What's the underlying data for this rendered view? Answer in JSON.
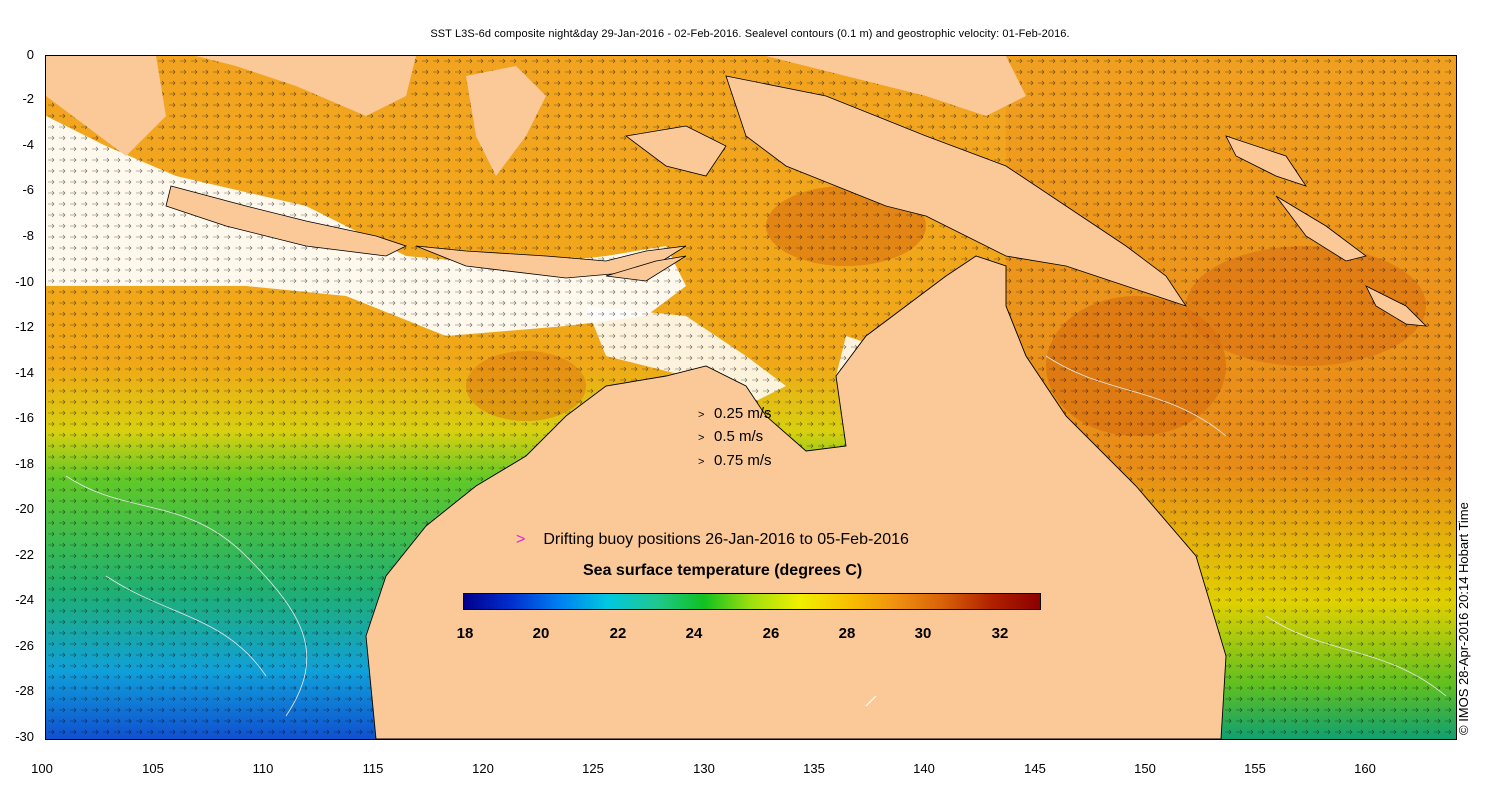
{
  "title": "SST L3S-6d composite night&day 29-Jan-2016 - 02-Feb-2016. Sealevel contours (0.1 m) and geostrophic velocity: 01-Feb-2016.",
  "axes": {
    "x_ticks": [
      "100",
      "105",
      "110",
      "115",
      "120",
      "125",
      "130",
      "135",
      "140",
      "145",
      "150",
      "155",
      "160"
    ],
    "y_ticks": [
      "0",
      "-2",
      "-4",
      "-6",
      "-8",
      "-10",
      "-12",
      "-14",
      "-16",
      "-18",
      "-20",
      "-22",
      "-24",
      "-26",
      "-28",
      "-30"
    ],
    "x_range": [
      100,
      164
    ],
    "y_range": [
      -30,
      0
    ]
  },
  "velocity_key": [
    {
      "symbol": ">",
      "label": "0.25 m/s"
    },
    {
      "symbol": ">",
      "label": "0.5 m/s"
    },
    {
      "symbol": ">",
      "label": "0.75 m/s"
    }
  ],
  "buoy_legend": {
    "symbol": ">",
    "label": "Drifting buoy positions 26-Jan-2016 to 05-Feb-2016",
    "color": "#e020e0"
  },
  "colorbar": {
    "title": "Sea surface temperature (degrees C)",
    "ticks": [
      "18",
      "20",
      "22",
      "24",
      "26",
      "28",
      "30",
      "32"
    ],
    "range": [
      18,
      33
    ],
    "colors": [
      "#00008c",
      "#0030d0",
      "#0080f0",
      "#00c8e0",
      "#20c890",
      "#10c020",
      "#a0e010",
      "#f0f000",
      "#f8c000",
      "#f09010",
      "#d86008",
      "#b02000",
      "#8c0000"
    ]
  },
  "credit": "© IMOS 28-Apr-2016 20:14 Hobart Time",
  "colors": {
    "land": "#fbc898",
    "ocean_warm": "#f0a020",
    "ocean_hot": "#e07810",
    "no_data": "#ffffff"
  }
}
